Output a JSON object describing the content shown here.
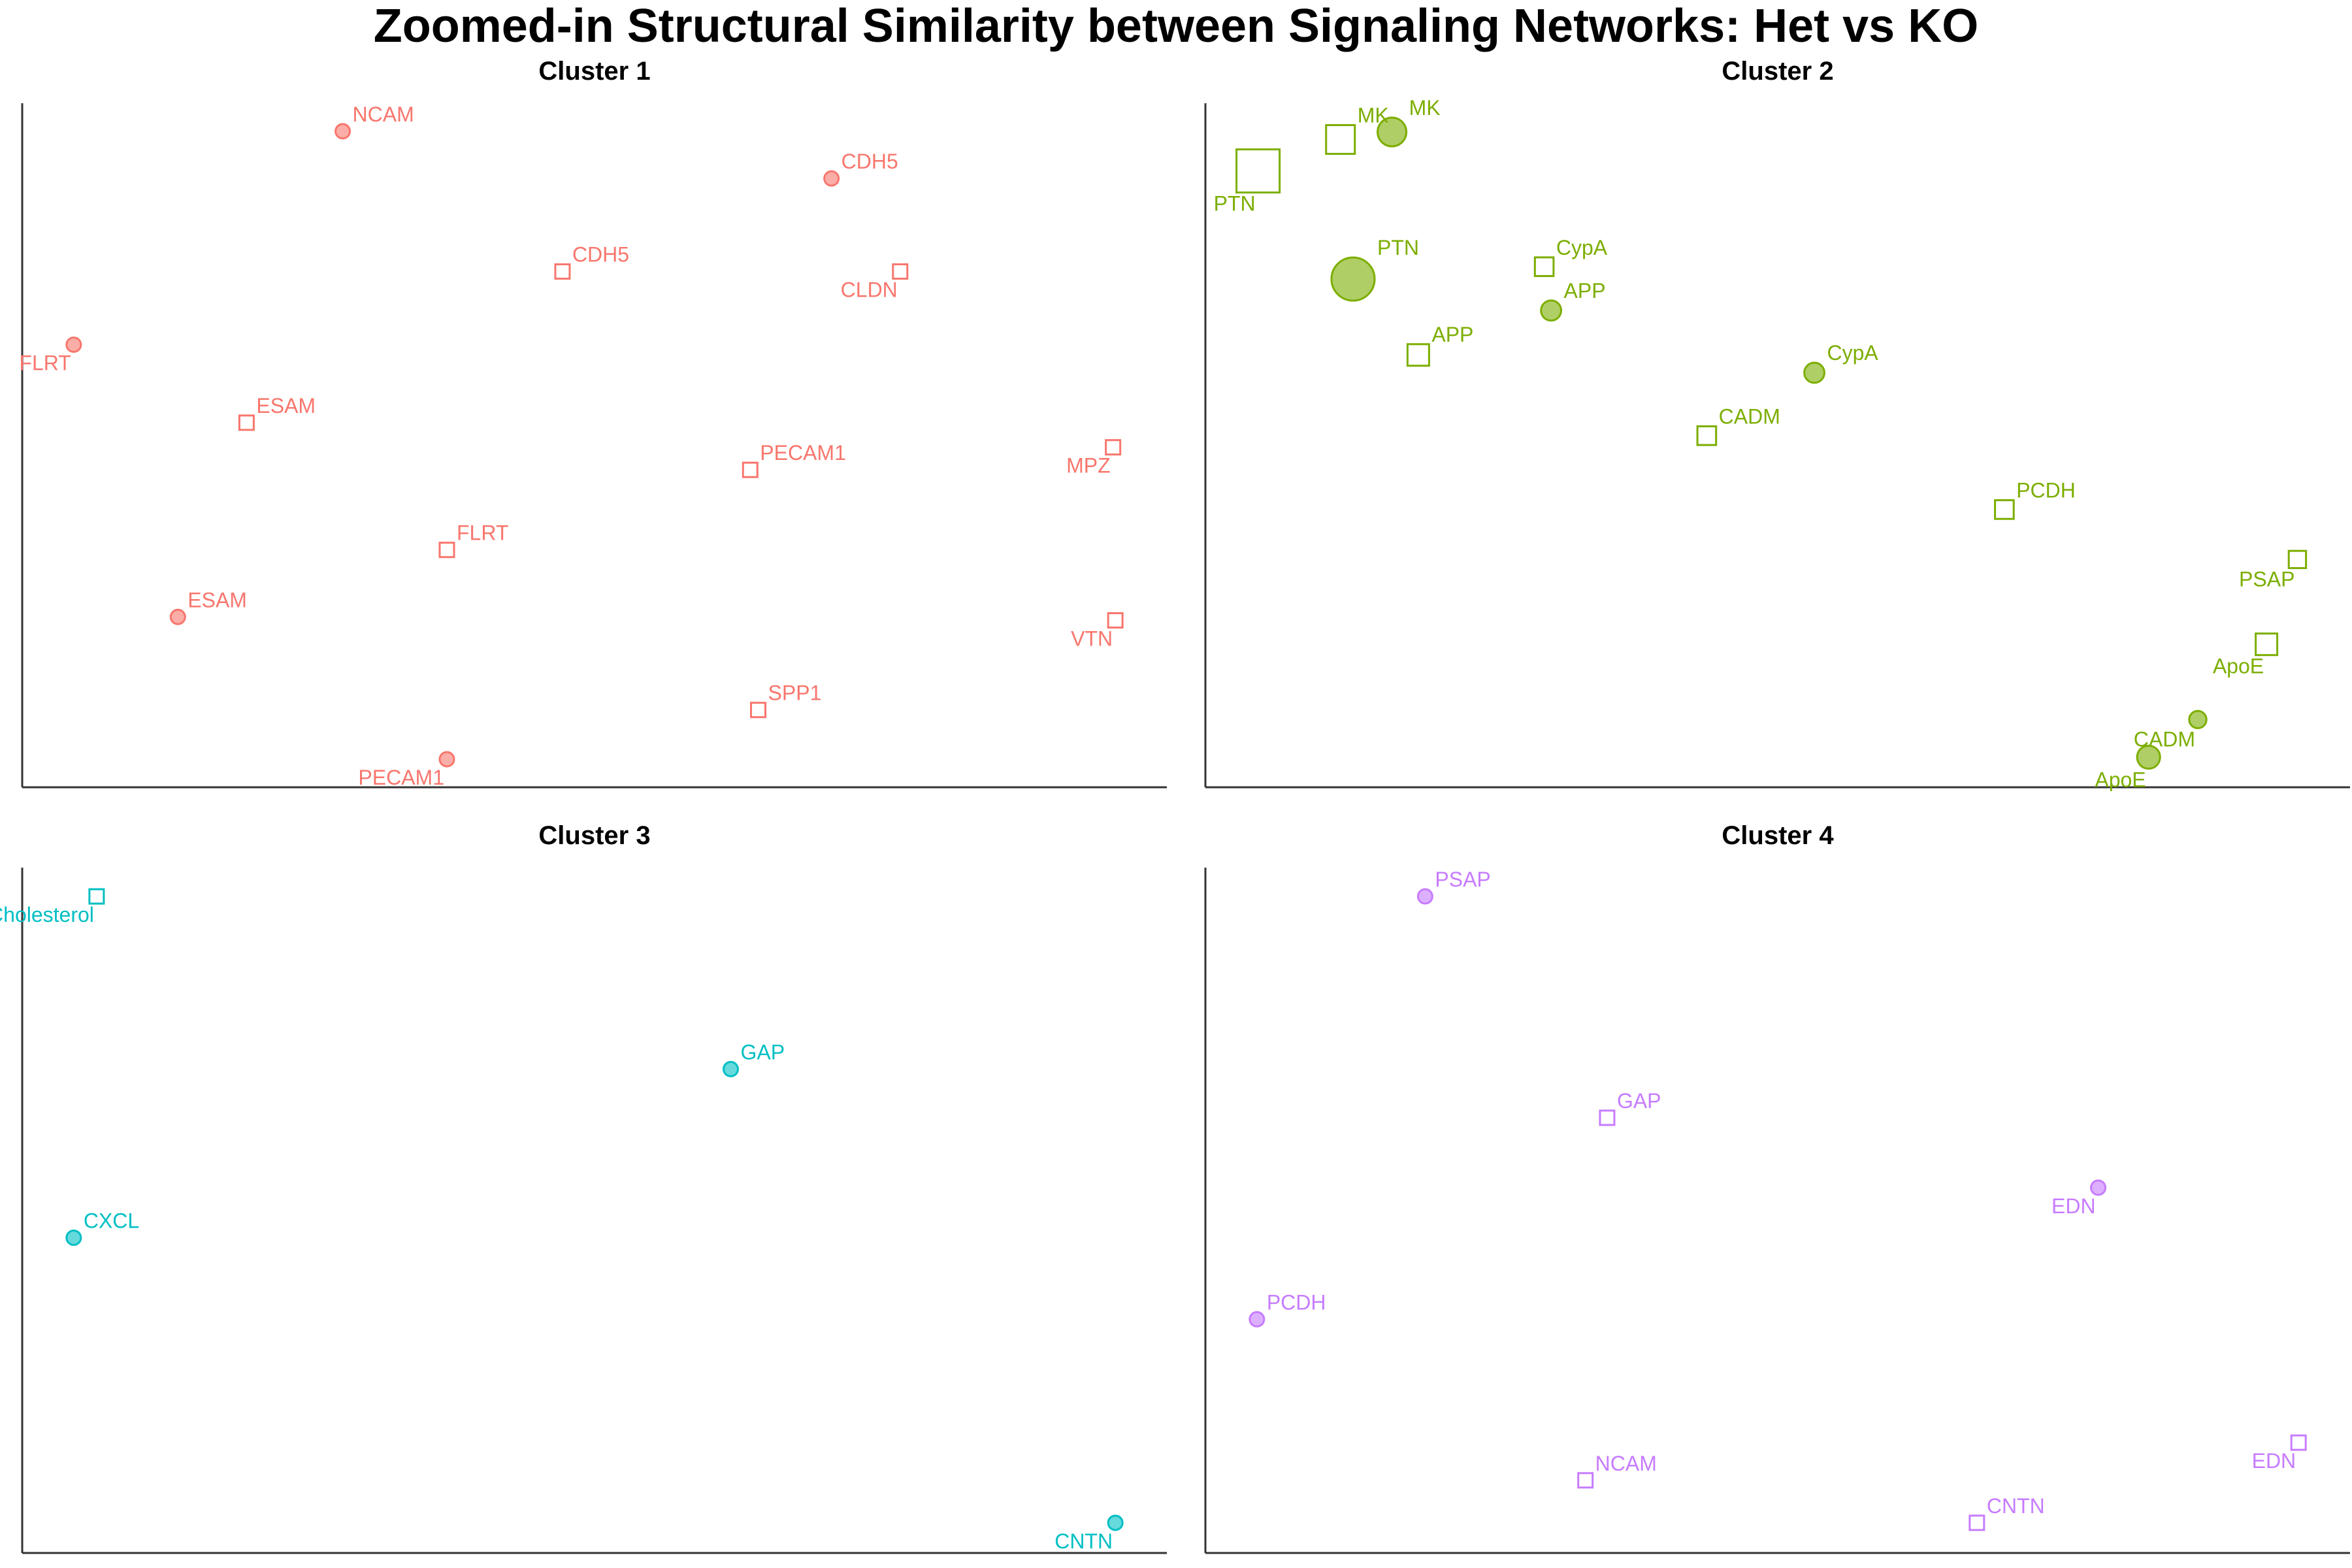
{
  "title": "Zoomed-in Structural Similarity between Signaling Networks: Het vs KO",
  "chart_data": [
    {
      "type": "scatter",
      "title": "Cluster 1",
      "color": "#F8766D",
      "xlim": [
        0,
        100
      ],
      "ylim": [
        0,
        100
      ],
      "xlabel": "",
      "ylabel": "",
      "grid": false,
      "points": [
        {
          "label": "NCAM",
          "group": "Het",
          "x": 28.0,
          "y": 95.9,
          "size": 1
        },
        {
          "label": "CDH5",
          "group": "Het",
          "x": 70.7,
          "y": 89.0,
          "size": 1
        },
        {
          "label": "FLRT",
          "group": "Het",
          "x": 4.5,
          "y": 64.7,
          "size": 1
        },
        {
          "label": "ESAM",
          "group": "Het",
          "x": 13.6,
          "y": 24.9,
          "size": 1
        },
        {
          "label": "PECAM1",
          "group": "Het",
          "x": 37.1,
          "y": 4.1,
          "size": 1
        },
        {
          "label": "CDH5",
          "group": "KO",
          "x": 47.2,
          "y": 75.4,
          "size": 1
        },
        {
          "label": "CLDN",
          "group": "KO",
          "x": 76.7,
          "y": 75.4,
          "size": 1
        },
        {
          "label": "ESAM",
          "group": "KO",
          "x": 19.6,
          "y": 53.3,
          "size": 1
        },
        {
          "label": "PECAM1",
          "group": "KO",
          "x": 63.6,
          "y": 46.4,
          "size": 1
        },
        {
          "label": "MPZ",
          "group": "KO",
          "x": 95.3,
          "y": 49.7,
          "size": 1
        },
        {
          "label": "FLRT",
          "group": "KO",
          "x": 37.1,
          "y": 34.7,
          "size": 1
        },
        {
          "label": "VTN",
          "group": "KO",
          "x": 95.5,
          "y": 24.4,
          "size": 1
        },
        {
          "label": "SPP1",
          "group": "KO",
          "x": 64.3,
          "y": 11.3,
          "size": 1
        }
      ]
    },
    {
      "type": "scatter",
      "title": "Cluster 2",
      "color": "#7CAE00",
      "xlim": [
        0,
        100
      ],
      "ylim": [
        0,
        100
      ],
      "xlabel": "",
      "ylabel": "",
      "grid": false,
      "points": [
        {
          "label": "MK",
          "group": "Het",
          "x": 16.3,
          "y": 95.8,
          "size": 2
        },
        {
          "label": "PTN",
          "group": "Het",
          "x": 12.9,
          "y": 74.3,
          "size": 3
        },
        {
          "label": "APP",
          "group": "Het",
          "x": 30.2,
          "y": 69.7,
          "size": 1.4
        },
        {
          "label": "CypA",
          "group": "Het",
          "x": 53.2,
          "y": 60.6,
          "size": 1.4
        },
        {
          "label": "CADM",
          "group": "Het",
          "x": 86.7,
          "y": 9.9,
          "size": 1.2
        },
        {
          "label": "ApoE",
          "group": "Het",
          "x": 82.4,
          "y": 4.4,
          "size": 1.6
        },
        {
          "label": "PTN",
          "group": "KO",
          "x": 4.6,
          "y": 90.1,
          "size": 3
        },
        {
          "label": "MK",
          "group": "KO",
          "x": 11.8,
          "y": 94.7,
          "size": 2
        },
        {
          "label": "CypA",
          "group": "KO",
          "x": 29.6,
          "y": 76.1,
          "size": 1.3
        },
        {
          "label": "APP",
          "group": "KO",
          "x": 18.6,
          "y": 63.2,
          "size": 1.5
        },
        {
          "label": "CADM",
          "group": "KO",
          "x": 43.8,
          "y": 51.4,
          "size": 1.3
        },
        {
          "label": "PCDH",
          "group": "KO",
          "x": 69.8,
          "y": 40.6,
          "size": 1.3
        },
        {
          "label": "PSAP",
          "group": "KO",
          "x": 95.4,
          "y": 33.3,
          "size": 1.2
        },
        {
          "label": "ApoE",
          "group": "KO",
          "x": 92.7,
          "y": 20.9,
          "size": 1.5
        }
      ]
    },
    {
      "type": "scatter",
      "title": "Cluster 3",
      "color": "#00BFC4",
      "xlim": [
        0,
        100
      ],
      "ylim": [
        0,
        100
      ],
      "xlabel": "",
      "ylabel": "",
      "grid": false,
      "points": [
        {
          "label": "GAP",
          "group": "Het",
          "x": 61.9,
          "y": 70.6,
          "size": 1
        },
        {
          "label": "CXCL",
          "group": "Het",
          "x": 4.5,
          "y": 46.0,
          "size": 1
        },
        {
          "label": "CNTN",
          "group": "Het",
          "x": 95.5,
          "y": 4.4,
          "size": 1
        },
        {
          "label": "Cholesterol",
          "group": "KO",
          "x": 6.5,
          "y": 95.8,
          "size": 1
        }
      ]
    },
    {
      "type": "scatter",
      "title": "Cluster 4",
      "color": "#C77CFF",
      "xlim": [
        0,
        100
      ],
      "ylim": [
        0,
        100
      ],
      "xlabel": "",
      "ylabel": "",
      "grid": false,
      "points": [
        {
          "label": "PSAP",
          "group": "Het",
          "x": 19.2,
          "y": 95.8,
          "size": 1
        },
        {
          "label": "EDN",
          "group": "Het",
          "x": 78.0,
          "y": 53.3,
          "size": 1
        },
        {
          "label": "PCDH",
          "group": "Het",
          "x": 4.5,
          "y": 34.1,
          "size": 1
        },
        {
          "label": "GAP",
          "group": "KO",
          "x": 35.1,
          "y": 63.5,
          "size": 1
        },
        {
          "label": "EDN",
          "group": "KO",
          "x": 95.5,
          "y": 16.1,
          "size": 1
        },
        {
          "label": "NCAM",
          "group": "KO",
          "x": 33.2,
          "y": 10.6,
          "size": 1
        },
        {
          "label": "CNTN",
          "group": "KO",
          "x": 67.4,
          "y": 4.4,
          "size": 1
        }
      ]
    }
  ]
}
